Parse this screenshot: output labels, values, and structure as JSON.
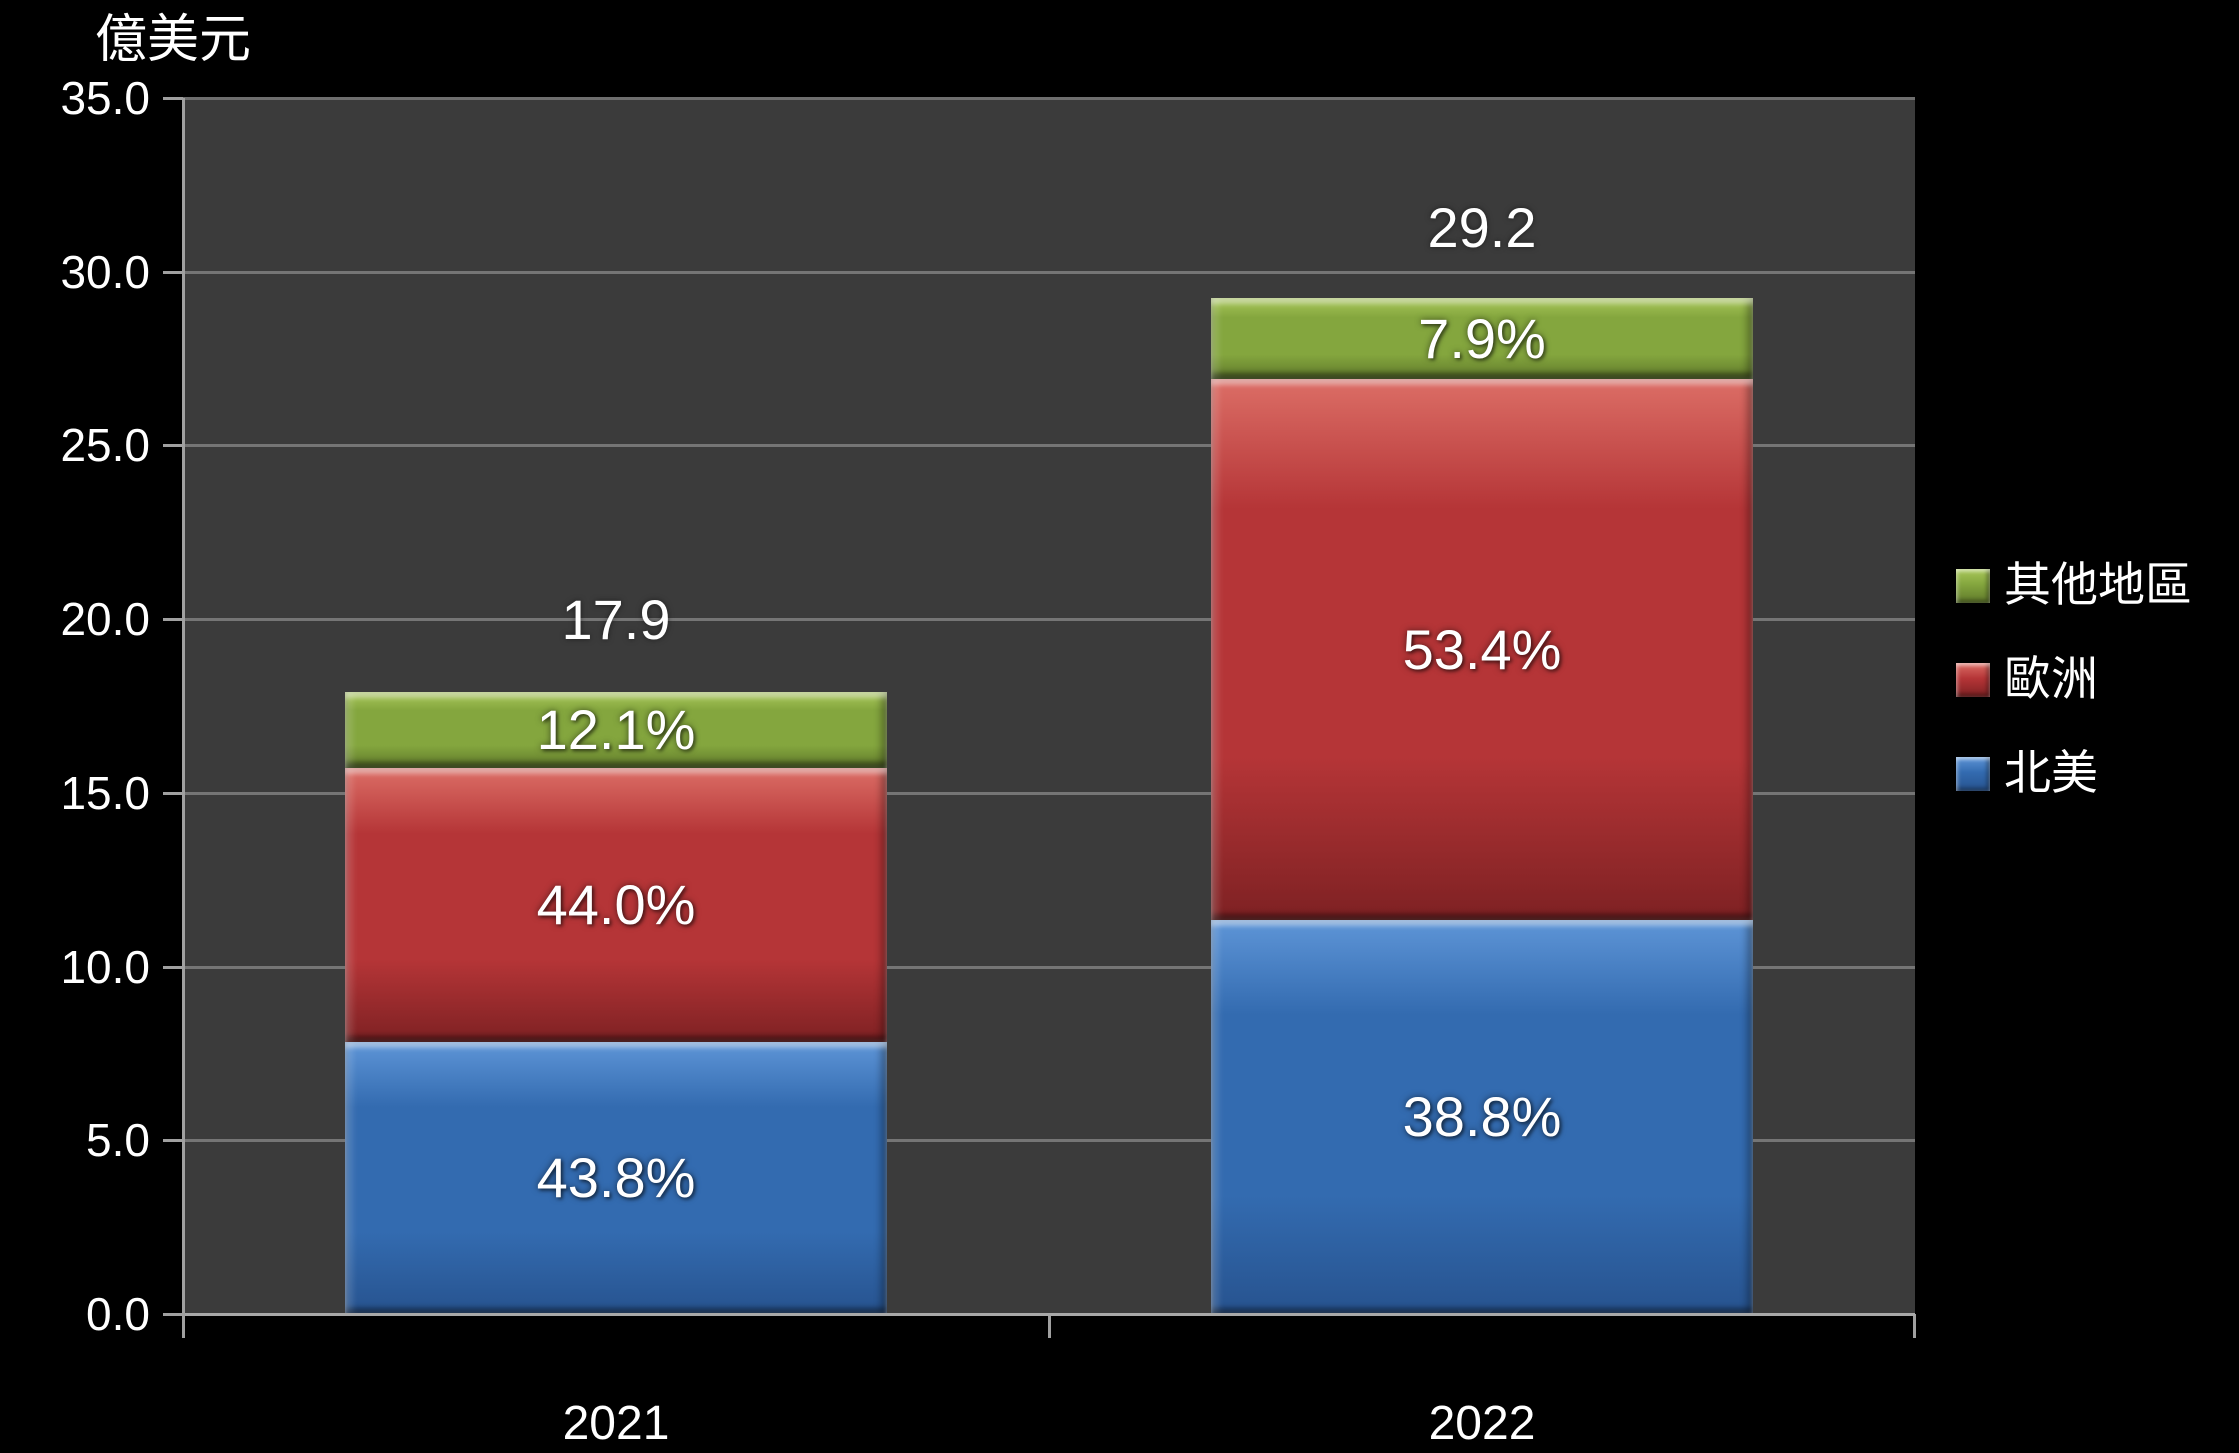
{
  "axis_title": "億美元",
  "colors": {
    "background": "#000000",
    "plot_background": "#3B3B3B",
    "gridline": "#757575",
    "axis": "#A8A8A8",
    "label_text": "#FFFFFF"
  },
  "chart_data": {
    "type": "bar",
    "stacked": true,
    "title": "億美元",
    "xlabel": "",
    "ylabel": "億美元",
    "categories": [
      "2021",
      "2022"
    ],
    "totals": [
      17.9,
      29.2
    ],
    "total_labels": [
      "17.9",
      "29.2"
    ],
    "series": [
      {
        "name": "北美",
        "values": [
          7.84,
          11.33
        ],
        "percent_labels": [
          "43.8%",
          "38.8%"
        ],
        "color": "#336BB0",
        "color_light": "#5E95D7",
        "color_dark": "#27538F"
      },
      {
        "name": "歐洲",
        "values": [
          7.88,
          15.59
        ],
        "percent_labels": [
          "44.0%",
          "53.4%"
        ],
        "color": "#B53537",
        "color_light": "#DC6E66",
        "color_dark": "#7E2123"
      },
      {
        "name": "其他地區",
        "values": [
          2.17,
          2.31
        ],
        "percent_labels": [
          "12.1%",
          "7.9%"
        ],
        "color": "#84A63E",
        "color_light": "#A9C85A",
        "color_dark": "#60792B"
      }
    ],
    "ylim": [
      0,
      35
    ],
    "ytick_step": 5,
    "ytick_labels": [
      "0.0",
      "5.0",
      "10.0",
      "15.0",
      "20.0",
      "25.0",
      "30.0",
      "35.0"
    ],
    "grid": true,
    "legend_position": "right",
    "legend_order": [
      "其他地區",
      "歐洲",
      "北美"
    ]
  }
}
